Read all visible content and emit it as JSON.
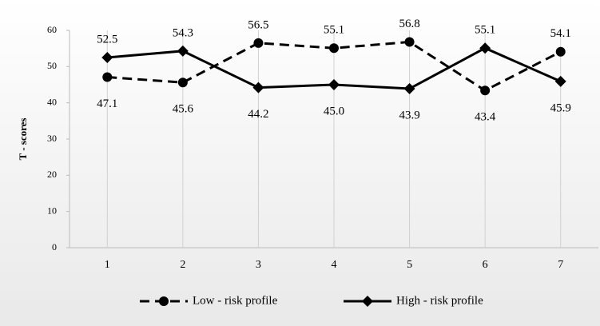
{
  "chart_data": {
    "type": "line",
    "y_label": "T - scores",
    "categories": [
      "1",
      "2",
      "3",
      "4",
      "5",
      "6",
      "7"
    ],
    "series": [
      {
        "name": "Low - risk profile",
        "color": "#000000",
        "dash": true,
        "marker": "circle",
        "values": [
          47.1,
          45.6,
          56.5,
          55.1,
          56.8,
          43.4,
          54.1
        ],
        "value_labels": [
          "47.1",
          "45.6",
          "56.5",
          "55.1",
          "56.8",
          "43.4",
          "54.1"
        ]
      },
      {
        "name": "High - risk profile",
        "color": "#000000",
        "dash": false,
        "marker": "diamond",
        "values": [
          52.5,
          54.3,
          44.2,
          45.0,
          43.9,
          55.1,
          45.9
        ],
        "value_labels": [
          "52.5",
          "54.3",
          "44.2",
          "45.0",
          "43.9",
          "55.1",
          "45.9"
        ]
      }
    ],
    "ylim": [
      0,
      60
    ],
    "yticks": [
      0,
      10,
      20,
      30,
      40,
      50,
      60
    ],
    "grid": "x",
    "legend": "bottom"
  }
}
